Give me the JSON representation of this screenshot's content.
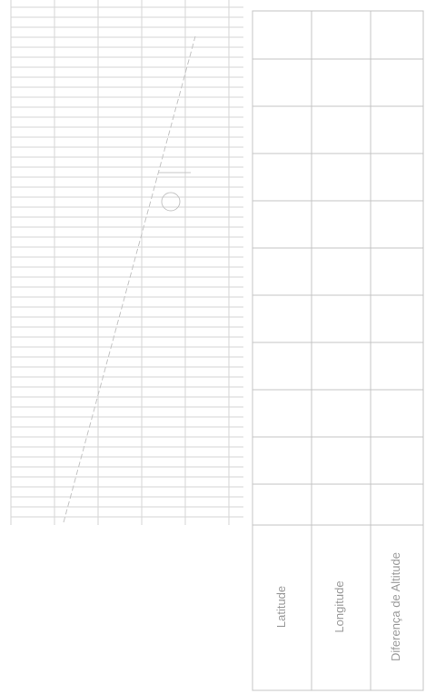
{
  "table": {
    "headers": [
      "Latitude",
      "Longitude",
      "Diferença de Altitude"
    ]
  }
}
